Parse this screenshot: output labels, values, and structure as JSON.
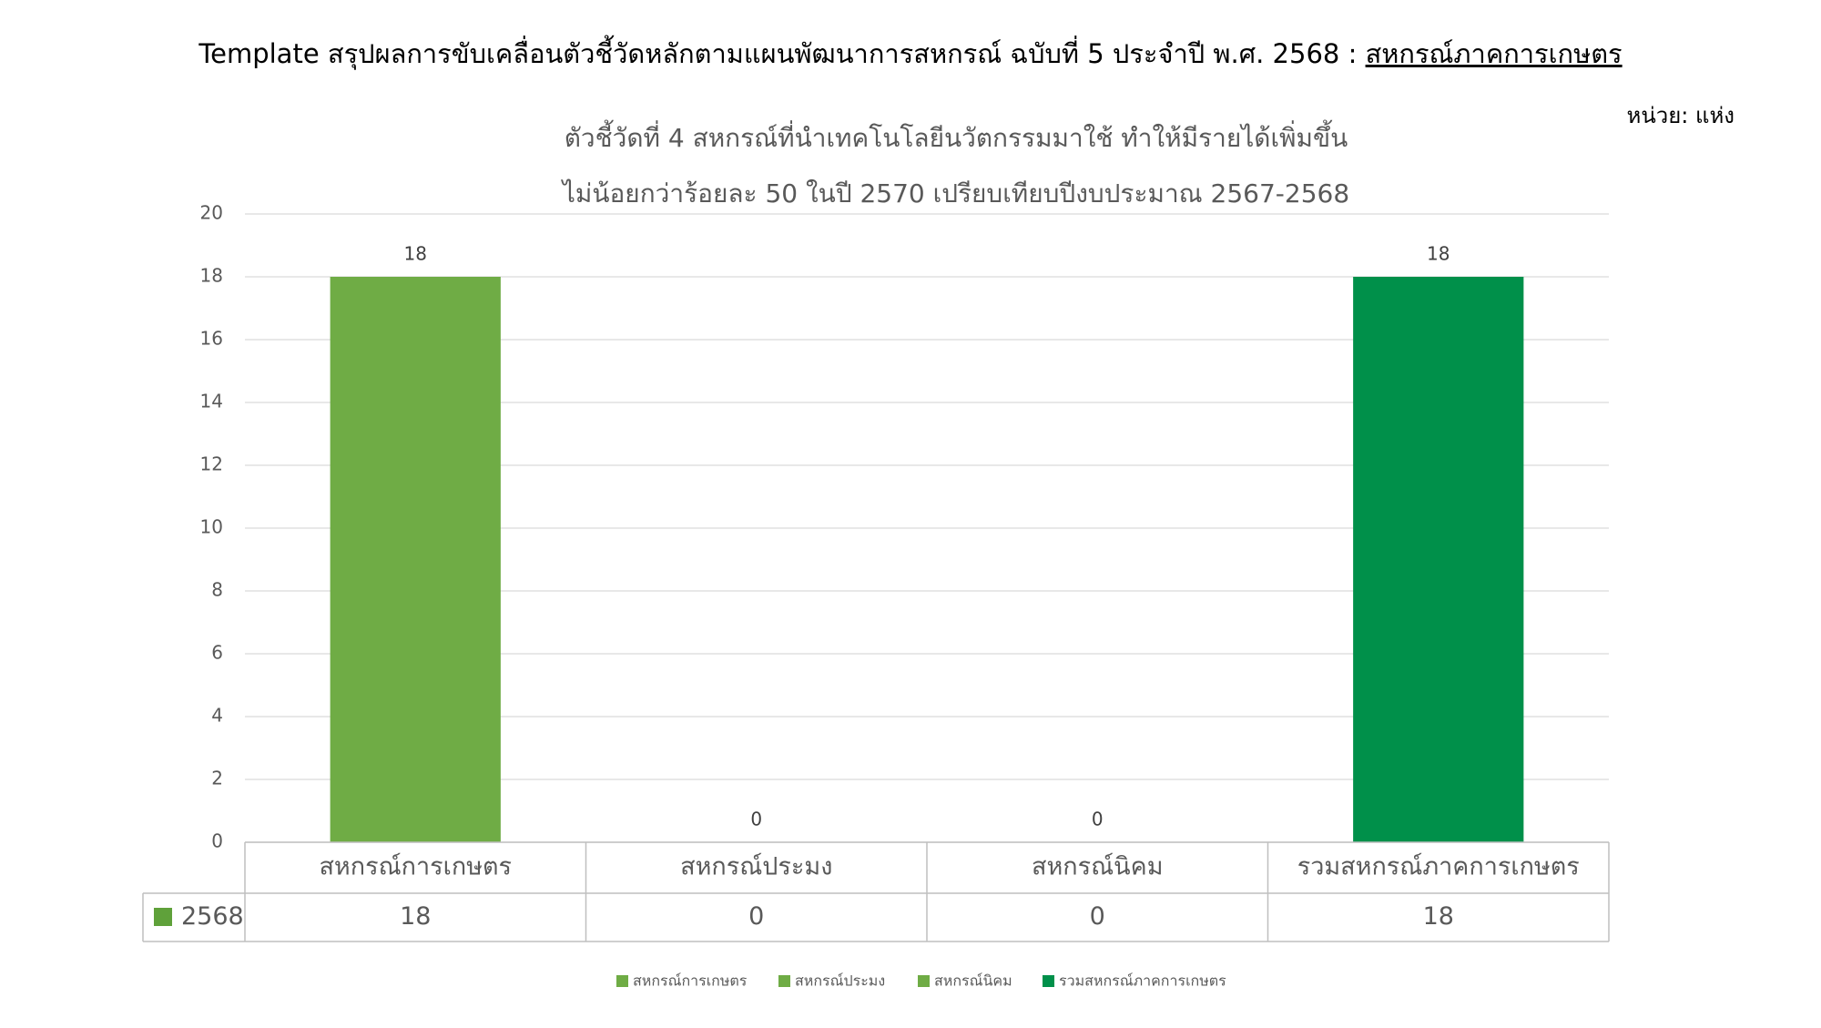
{
  "header": {
    "title": "Template สรุปผลการขับเคลื่อนตัวชี้วัดหลักตามแผนพัฒนาการสหกรณ์ ฉบับที่ 5 ประจำปี พ.ศ. 2568 :",
    "title_underlined": "สหกรณ์ภาคการเกษตร"
  },
  "unit": "หน่วย: แห่ง",
  "chart_data": {
    "type": "bar",
    "title": [
      "ตัวชี้วัดที่ 4 สหกรณ์ที่นำเทคโนโลยีนวัตกรรมมาใช้ ทำให้มีรายได้เพิ่มขึ้น",
      "ไม่น้อยกว่าร้อยละ 50 ในปี 2570 เปรียบเทียบปีงบประมาณ 2567-2568"
    ],
    "categories": [
      "สหกรณ์การเกษตร",
      "สหกรณ์ประมง",
      "สหกรณ์นิคม",
      "รวมสหกรณ์ภาคการเกษตร"
    ],
    "colors": [
      "#6fac45",
      "#6fac45",
      "#6fac45",
      "#00904a"
    ],
    "series": [
      {
        "name": "2568",
        "color": "#5fa13a",
        "values": [
          18,
          0,
          0,
          18
        ]
      }
    ],
    "ylim": [
      0,
      20
    ],
    "yticks": [
      0,
      2,
      4,
      6,
      8,
      10,
      12,
      14,
      16,
      18,
      20
    ],
    "grid": true,
    "data_table": true,
    "legend": "bottom"
  }
}
